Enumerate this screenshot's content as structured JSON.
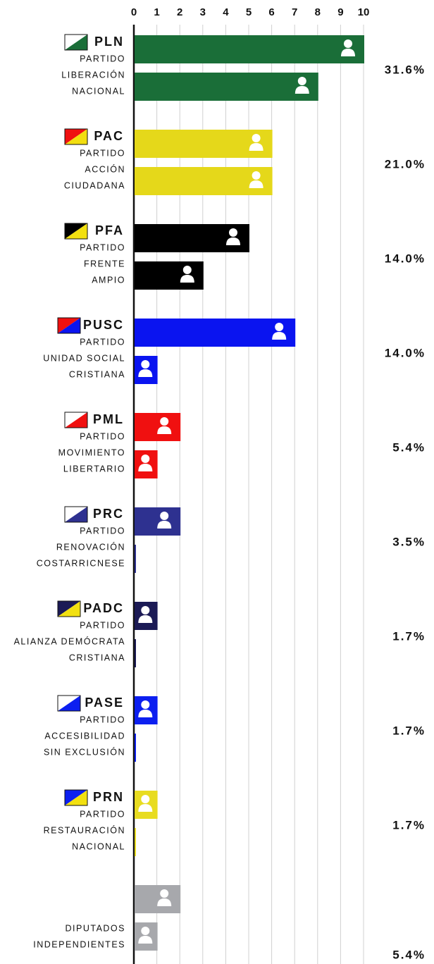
{
  "chart_data": {
    "type": "bar",
    "xlim": [
      0,
      10
    ],
    "xticks": [
      0,
      1,
      2,
      3,
      4,
      5,
      6,
      7,
      8,
      9,
      10
    ],
    "grid": true,
    "groups": [
      {
        "abbr": "PLN",
        "name_lines": [
          "PARTIDO",
          "LIBERACIÓN",
          "NACIONAL"
        ],
        "values": [
          10,
          8
        ],
        "color": "#1a6e38",
        "flag": [
          "#ffffff",
          "#1a6e38"
        ],
        "share": 31.6,
        "share_label": "31.6%"
      },
      {
        "abbr": "PAC",
        "name_lines": [
          "PARTIDO",
          "ACCIÓN",
          "CIUDADANA"
        ],
        "values": [
          6,
          6
        ],
        "color": "#e5d81a",
        "flag": [
          "#f01010",
          "#f2de10"
        ],
        "share": 21.0,
        "share_label": "21.0%"
      },
      {
        "abbr": "PFA",
        "name_lines": [
          "PARTIDO",
          "FRENTE",
          "AMPIO"
        ],
        "values": [
          5,
          3
        ],
        "color": "#000000",
        "flag": [
          "#000000",
          "#f2e010"
        ],
        "share": 14.0,
        "share_label": "14.0%"
      },
      {
        "abbr": "PUSC",
        "name_lines": [
          "PARTIDO",
          "UNIDAD SOCIAL",
          "CRISTIANA"
        ],
        "values": [
          7,
          1
        ],
        "color": "#0a14f0",
        "flag": [
          "#f01010",
          "#0a14f0"
        ],
        "share": 14.0,
        "share_label": "14.0%"
      },
      {
        "abbr": "PML",
        "name_lines": [
          "PARTIDO",
          "MOVIMIENTO",
          "LIBERTARIO"
        ],
        "values": [
          2,
          1
        ],
        "color": "#f01010",
        "flag": [
          "#ffffff",
          "#f01010"
        ],
        "share": 5.4,
        "share_label": "5.4%"
      },
      {
        "abbr": "PRC",
        "name_lines": [
          "PARTIDO",
          "RENOVACIÓN",
          "COSTARRICNESE"
        ],
        "values": [
          2,
          0
        ],
        "color": "#2e3190",
        "flag": [
          "#ffffff",
          "#2e3190"
        ],
        "share": 3.5,
        "share_label": "3.5%"
      },
      {
        "abbr": "PADC",
        "name_lines": [
          "PARTIDO",
          "ALIANZA DEMÓCRATA",
          "CRISTIANA"
        ],
        "values": [
          1,
          0
        ],
        "color": "#1b1a55",
        "flag": [
          "#1b1a55",
          "#f2e010"
        ],
        "share": 1.7,
        "share_label": "1.7%"
      },
      {
        "abbr": "PASE",
        "name_lines": [
          "PARTIDO",
          "ACCESIBILIDAD",
          "SIN EXCLUSIÓN"
        ],
        "values": [
          1,
          0
        ],
        "color": "#0c1ff0",
        "flag": [
          "#ffffff",
          "#0c1ff0"
        ],
        "share": 1.7,
        "share_label": "1.7%"
      },
      {
        "abbr": "PRN",
        "name_lines": [
          "PARTIDO",
          "RESTAURACIÓN",
          "NACIONAL"
        ],
        "values": [
          1,
          0
        ],
        "color": "#e8dc20",
        "flag": [
          "#0c1ff0",
          "#f2e010"
        ],
        "share": 1.7,
        "share_label": "1.7%"
      },
      {
        "name_lines": [
          "DIPUTADOS",
          "INDEPENDIENTES"
        ],
        "values": [
          2,
          1
        ],
        "color": "#a7a8ac",
        "share": 5.4,
        "share_label": "5.4%"
      }
    ]
  }
}
